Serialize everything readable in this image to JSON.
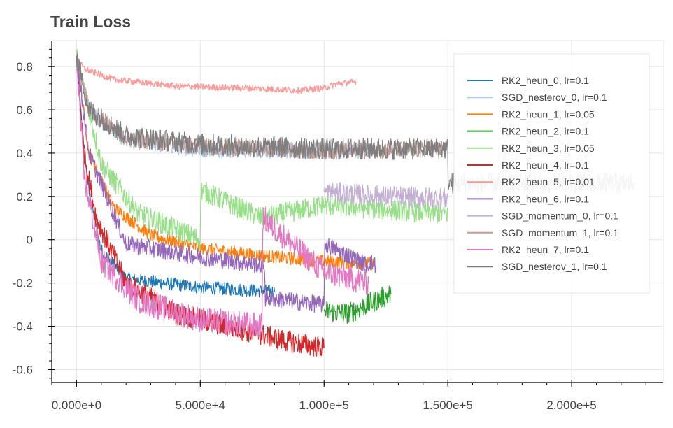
{
  "chart_data": {
    "type": "line",
    "title": "Train Loss",
    "xlabel": "",
    "ylabel": "",
    "xlim": [
      -10000,
      237000
    ],
    "ylim": [
      -0.66,
      0.92
    ],
    "grid": true,
    "legend_position": "top-right",
    "x_ticks": [
      0,
      50000,
      100000,
      150000,
      200000
    ],
    "x_tick_labels": [
      "0.000e+0",
      "5.000e+4",
      "1.000e+5",
      "1.500e+5",
      "2.000e+5"
    ],
    "y_ticks": [
      -0.6,
      -0.4,
      -0.2,
      0,
      0.2,
      0.4,
      0.6,
      0.8
    ],
    "y_tick_labels": [
      "-0.6",
      "-0.4",
      "-0.2",
      "0",
      "0.2",
      "0.4",
      "0.6",
      "0.8"
    ],
    "series": [
      {
        "name": "RK2_heun_0, lr=0.1",
        "color": "#1f77b4",
        "noise": 0.03,
        "x": [
          0,
          2000,
          5000,
          10000,
          20000,
          50000,
          80000
        ],
        "y": [
          0.85,
          0.55,
          0.22,
          -0.05,
          -0.18,
          -0.22,
          -0.24
        ]
      },
      {
        "name": "SGD_nesterov_0, lr=0.1",
        "color": "#aec7e8",
        "noise": 0.04,
        "x": [
          0,
          5000,
          20000,
          50000,
          100000,
          120000
        ],
        "y": [
          0.85,
          0.6,
          0.46,
          0.42,
          0.41,
          0.41
        ]
      },
      {
        "name": "RK2_heun_1, lr=0.05",
        "color": "#ff7f0e",
        "noise": 0.03,
        "x": [
          0,
          5000,
          15000,
          30000,
          50000,
          80000,
          100000,
          120000
        ],
        "y": [
          0.85,
          0.4,
          0.15,
          0.02,
          -0.04,
          -0.08,
          -0.1,
          -0.11
        ]
      },
      {
        "name": "RK2_heun_2, lr=0.1",
        "color": "#2ca02c",
        "noise": 0.05,
        "x": [
          100000,
          110000,
          127000
        ],
        "y": [
          -0.33,
          -0.34,
          -0.25
        ]
      },
      {
        "name": "RK2_heun_3, lr=0.05",
        "color": "#98df8a",
        "noise": 0.05,
        "x": [
          0,
          10000,
          25000,
          50000,
          50200,
          65000,
          75000,
          100000,
          125000,
          150000
        ],
        "y": [
          0.85,
          0.35,
          0.12,
          0.0,
          0.23,
          0.15,
          0.1,
          0.16,
          0.14,
          0.12
        ]
      },
      {
        "name": "RK2_heun_4, lr=0.1",
        "color": "#d62728",
        "noise": 0.05,
        "x": [
          0,
          3000,
          8000,
          20000,
          40000,
          60000,
          75000,
          85000,
          100000
        ],
        "y": [
          0.85,
          0.4,
          0.1,
          -0.2,
          -0.34,
          -0.4,
          -0.44,
          -0.47,
          -0.5
        ]
      },
      {
        "name": "RK2_heun_5, lr=0.01",
        "color": "#ff9896",
        "noise": 0.015,
        "x": [
          0,
          3000,
          15000,
          40000,
          70000,
          90000,
          100000,
          105000,
          113000
        ],
        "y": [
          0.84,
          0.79,
          0.74,
          0.71,
          0.7,
          0.69,
          0.7,
          0.72,
          0.73
        ]
      },
      {
        "name": "RK2_heun_6, lr=0.1",
        "color": "#9467bd",
        "noise": 0.04,
        "x": [
          0,
          5000,
          20000,
          50000,
          76000,
          76200,
          100000,
          100200,
          118000,
          118200,
          121000
        ],
        "y": [
          0.85,
          0.4,
          -0.02,
          -0.08,
          -0.12,
          -0.27,
          -0.3,
          -0.02,
          -0.12,
          -0.1,
          -0.12
        ]
      },
      {
        "name": "SGD_momentum_0, lr=0.1",
        "color": "#c5b0d5",
        "noise": 0.05,
        "x": [
          100000,
          125000,
          150000
        ],
        "y": [
          0.22,
          0.2,
          0.19
        ]
      },
      {
        "name": "SGD_momentum_1, lr=0.1",
        "color": "#c49c94",
        "noise": 0.04,
        "x": [
          0,
          5000,
          20000,
          50000,
          100000,
          150000
        ],
        "y": [
          0.85,
          0.6,
          0.47,
          0.43,
          0.41,
          0.42
        ]
      },
      {
        "name": "RK2_heun_7, lr=0.1",
        "color": "#e377c2",
        "noise": 0.06,
        "x": [
          0,
          3000,
          10000,
          25000,
          50000,
          75000,
          75200,
          100000,
          118000
        ],
        "y": [
          0.85,
          0.3,
          -0.1,
          -0.28,
          -0.37,
          -0.4,
          0.1,
          -0.15,
          -0.2
        ]
      },
      {
        "name": "SGD_nesterov_1, lr=0.1",
        "color": "#7f7f7f",
        "noise": 0.05,
        "x": [
          0,
          5000,
          20000,
          50000,
          100000,
          150000,
          150200,
          225000
        ],
        "y": [
          0.85,
          0.6,
          0.48,
          0.44,
          0.42,
          0.42,
          0.26,
          0.26
        ]
      }
    ]
  }
}
